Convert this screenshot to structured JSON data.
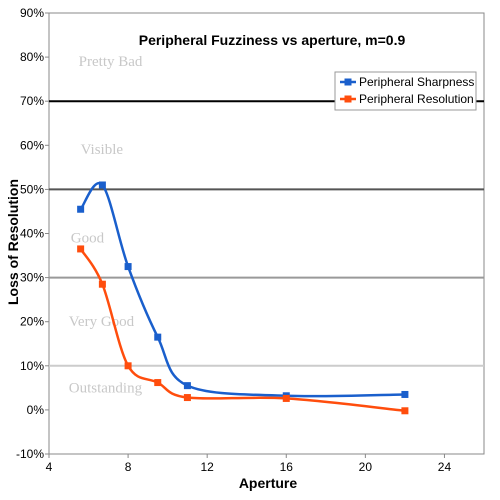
{
  "chart_data": {
    "type": "line",
    "title": "Peripheral Fuzziness vs aperture, m=0.9",
    "xlabel": "Aperture",
    "ylabel": "Loss of Resolution",
    "xlim": [
      4,
      26
    ],
    "ylim": [
      -10,
      90
    ],
    "x_ticks": [
      "4",
      "8",
      "12",
      "16",
      "20",
      "24"
    ],
    "y_ticks": [
      "-10%",
      "0%",
      "10%",
      "20%",
      "30%",
      "40%",
      "50%",
      "60%",
      "70%",
      "80%",
      "90%"
    ],
    "grid": false,
    "reference_lines": [
      {
        "y": 70,
        "color": "#000000"
      },
      {
        "y": 50,
        "color": "#555555"
      },
      {
        "y": 30,
        "color": "#999999"
      },
      {
        "y": 10,
        "color": "#cccccc"
      }
    ],
    "zone_labels": [
      {
        "text": "Pretty Bad",
        "x": 5.5,
        "y": 78
      },
      {
        "text": "Visible",
        "x": 5.6,
        "y": 58
      },
      {
        "text": "Good",
        "x": 5.1,
        "y": 38
      },
      {
        "text": "Very Good",
        "x": 5.0,
        "y": 19
      },
      {
        "text": "Outstanding",
        "x": 5.0,
        "y": 4
      }
    ],
    "legend_position": "top-right",
    "series": [
      {
        "name": "Peripheral Sharpness",
        "color": "#1a5fcc",
        "x": [
          5.6,
          6.7,
          8,
          9.5,
          11,
          16,
          22
        ],
        "y": [
          45.5,
          51,
          32.5,
          16.5,
          5.5,
          3.2,
          3.5
        ]
      },
      {
        "name": "Peripheral Resolution",
        "color": "#ff4d0d",
        "x": [
          5.6,
          6.7,
          8,
          9.5,
          11,
          16,
          22
        ],
        "y": [
          36.5,
          28.5,
          10,
          6.2,
          2.8,
          2.6,
          -0.2
        ]
      }
    ]
  }
}
